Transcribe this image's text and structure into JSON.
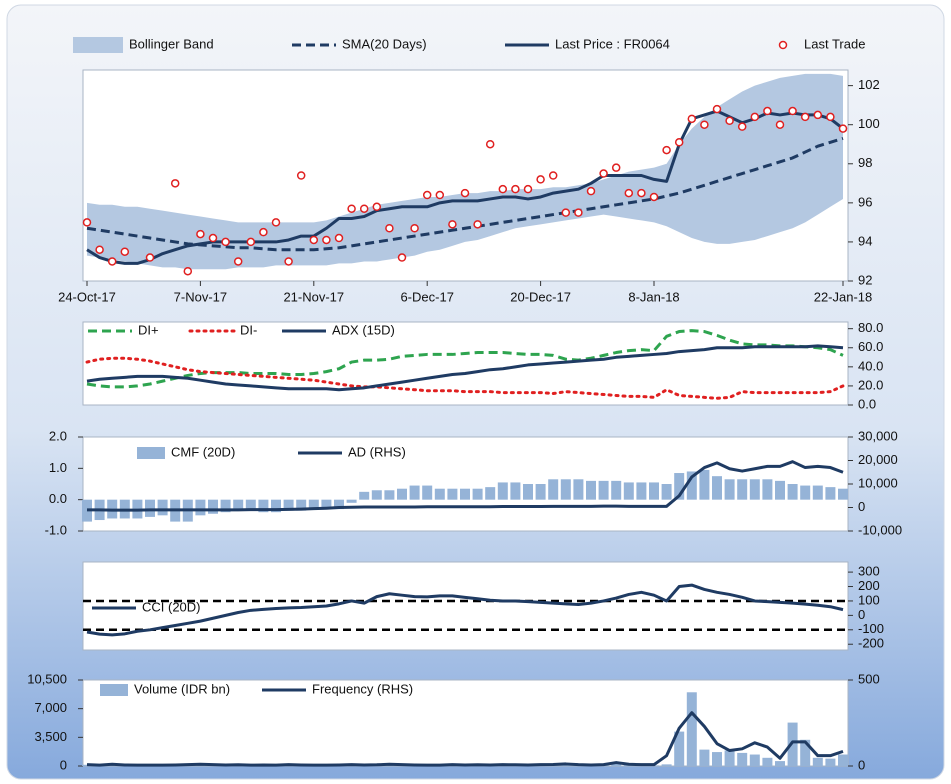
{
  "chart_data": [
    {
      "type": "combo",
      "y_side": "right",
      "categories": [
        "24-Oct-17",
        null,
        null,
        null,
        null,
        null,
        null,
        null,
        null,
        "7-Nov-17",
        null,
        null,
        null,
        null,
        null,
        null,
        null,
        null,
        "21-Nov-17",
        null,
        null,
        null,
        null,
        null,
        null,
        null,
        null,
        "6-Dec-17",
        null,
        null,
        null,
        null,
        null,
        null,
        null,
        null,
        "20-Dec-17",
        null,
        null,
        null,
        null,
        null,
        null,
        null,
        null,
        "8-Jan-18",
        null,
        null,
        null,
        null,
        null,
        null,
        null,
        null,
        null,
        null,
        null,
        null,
        null,
        null,
        "22-Jan-18"
      ],
      "ylim": [
        92,
        102.8
      ],
      "yticks": [
        92,
        94,
        96,
        98,
        100,
        102
      ],
      "series": [
        {
          "name": "Bollinger Band",
          "type": "band",
          "color": "#b4c8e1",
          "upper": [
            96.0,
            95.9,
            95.9,
            95.8,
            95.8,
            95.7,
            95.6,
            95.5,
            95.4,
            95.3,
            95.2,
            95.1,
            95.0,
            95.0,
            95.0,
            95.0,
            95.0,
            95.0,
            95.0,
            95.1,
            95.3,
            95.5,
            95.7,
            95.9,
            96.0,
            96.1,
            96.2,
            96.3,
            96.3,
            96.4,
            96.5,
            96.5,
            96.6,
            96.6,
            96.7,
            96.7,
            96.7,
            96.8,
            96.8,
            96.9,
            97.0,
            97.2,
            97.4,
            97.6,
            97.7,
            97.8,
            98.0,
            99.0,
            99.8,
            100.4,
            100.9,
            101.3,
            101.7,
            102.0,
            102.2,
            102.4,
            102.5,
            102.6,
            102.6,
            102.6,
            102.5
          ],
          "lower": [
            93.3,
            93.2,
            93.1,
            93.0,
            92.9,
            92.8,
            92.7,
            92.7,
            92.6,
            92.6,
            92.6,
            92.6,
            92.7,
            92.7,
            92.7,
            92.8,
            92.8,
            92.8,
            92.8,
            92.8,
            92.9,
            92.9,
            93.0,
            93.0,
            93.1,
            93.2,
            93.3,
            93.5,
            93.6,
            93.8,
            94.0,
            94.1,
            94.3,
            94.5,
            94.7,
            94.8,
            94.9,
            95.0,
            95.1,
            95.2,
            95.3,
            95.4,
            95.3,
            95.2,
            95.1,
            95.0,
            94.8,
            94.5,
            94.2,
            94.0,
            93.9,
            93.9,
            94.0,
            94.1,
            94.3,
            94.5,
            94.7,
            95.0,
            95.4,
            95.8,
            96.2
          ]
        },
        {
          "name": "SMA(20 Days)",
          "type": "line",
          "dash": "dashed",
          "color": "#1f3b63",
          "values": [
            94.7,
            94.6,
            94.5,
            94.4,
            94.3,
            94.2,
            94.1,
            94.0,
            93.9,
            93.85,
            93.8,
            93.75,
            93.7,
            93.7,
            93.65,
            93.6,
            93.6,
            93.6,
            93.6,
            93.65,
            93.7,
            93.8,
            93.9,
            94.0,
            94.1,
            94.2,
            94.3,
            94.4,
            94.5,
            94.6,
            94.7,
            94.8,
            94.9,
            95.0,
            95.1,
            95.2,
            95.3,
            95.4,
            95.5,
            95.6,
            95.7,
            95.8,
            95.9,
            96.0,
            96.1,
            96.2,
            96.35,
            96.5,
            96.7,
            96.9,
            97.1,
            97.3,
            97.5,
            97.7,
            97.9,
            98.1,
            98.3,
            98.6,
            98.9,
            99.1,
            99.3
          ]
        },
        {
          "name": "Last Price : FR0064",
          "type": "line",
          "color": "#1f3b63",
          "values": [
            93.6,
            93.2,
            93.0,
            92.9,
            92.9,
            93.1,
            93.4,
            93.6,
            93.8,
            93.9,
            94.0,
            94.0,
            94.0,
            94.0,
            94.0,
            94.0,
            94.1,
            94.3,
            94.3,
            94.7,
            95.2,
            95.2,
            95.3,
            95.6,
            95.7,
            95.8,
            95.8,
            95.8,
            96.0,
            96.1,
            96.1,
            96.1,
            96.2,
            96.3,
            96.3,
            96.2,
            96.3,
            96.5,
            96.6,
            96.7,
            97.0,
            97.4,
            97.4,
            97.4,
            97.4,
            97.2,
            97.1,
            99.0,
            100.3,
            100.5,
            100.7,
            100.4,
            100.1,
            100.3,
            100.6,
            100.5,
            100.6,
            100.5,
            100.5,
            100.3,
            99.8
          ]
        },
        {
          "name": "Last Trade",
          "type": "scatter",
          "color": "#e02020",
          "values": [
            95.0,
            93.6,
            93.0,
            93.5,
            null,
            93.2,
            null,
            97.0,
            92.5,
            94.4,
            94.2,
            94.0,
            93.0,
            94.0,
            94.5,
            95.0,
            93.0,
            97.4,
            94.1,
            94.1,
            94.2,
            95.7,
            95.7,
            95.8,
            94.7,
            93.2,
            94.7,
            96.4,
            96.4,
            94.9,
            96.5,
            94.9,
            99.0,
            96.7,
            96.7,
            96.7,
            97.2,
            97.4,
            95.5,
            95.5,
            96.6,
            97.5,
            97.8,
            96.5,
            96.5,
            96.3,
            98.7,
            99.1,
            100.3,
            100.0,
            100.8,
            100.2,
            99.9,
            100.4,
            100.7,
            100.0,
            100.7,
            100.4,
            100.5,
            100.4,
            99.8
          ]
        }
      ]
    },
    {
      "type": "combo",
      "y_side": "right",
      "ylim": [
        0,
        87
      ],
      "yticks": [
        {
          "value": 0,
          "label": "0.0"
        },
        {
          "value": 20,
          "label": "20.0"
        },
        {
          "value": 40,
          "label": "40.0"
        },
        {
          "value": 60,
          "label": "60.0"
        },
        {
          "value": 80,
          "label": "80.0"
        }
      ],
      "series": [
        {
          "name": "DI+",
          "type": "line",
          "dash": "dashed",
          "color": "#2ea44f",
          "values": [
            22,
            20,
            19,
            19,
            20,
            22,
            25,
            28,
            31,
            33,
            34,
            34,
            34,
            33,
            33,
            33,
            32,
            32,
            33,
            35,
            38,
            45,
            47,
            47,
            48,
            51,
            52,
            53,
            53,
            53,
            54,
            55,
            55,
            55,
            54,
            53,
            53,
            52,
            48,
            47,
            49,
            52,
            55,
            57,
            58,
            57,
            72,
            77,
            78,
            77,
            73,
            68,
            64,
            63,
            63,
            62,
            62,
            61,
            60,
            58,
            52
          ]
        },
        {
          "name": "DI-",
          "type": "line",
          "dash": "dotted",
          "color": "#e02020",
          "values": [
            45,
            48,
            49,
            49,
            48,
            46,
            43,
            40,
            37,
            35,
            34,
            33,
            32,
            31,
            30,
            29,
            28,
            27,
            26,
            24,
            22,
            20,
            19,
            19,
            18,
            17,
            16,
            15,
            15,
            15,
            14,
            14,
            14,
            13,
            13,
            13,
            13,
            12,
            14,
            13,
            12,
            11,
            10,
            9,
            9,
            8,
            16,
            10,
            9,
            8,
            7,
            8,
            14,
            13,
            13,
            13,
            13,
            13,
            13,
            14,
            20
          ]
        },
        {
          "name": "ADX (15D)",
          "type": "line",
          "color": "#1f3b63",
          "values": [
            25,
            27,
            28,
            29,
            30,
            30,
            30,
            29,
            28,
            26,
            24,
            22,
            21,
            20,
            19,
            18,
            17,
            17,
            17,
            17,
            16,
            17,
            18,
            20,
            22,
            24,
            26,
            28,
            30,
            32,
            33,
            35,
            37,
            38,
            40,
            42,
            43,
            44,
            45,
            46,
            47,
            48,
            50,
            51,
            52,
            53,
            54,
            56,
            57,
            58,
            60,
            60,
            60,
            61,
            61,
            61,
            61,
            61,
            62,
            61,
            60
          ]
        }
      ]
    },
    {
      "type": "combo",
      "y_side": "left",
      "ylim": [
        -1,
        2
      ],
      "yticks": [
        {
          "value": -1,
          "label": "-1.0"
        },
        {
          "value": 0,
          "label": "0.0"
        },
        {
          "value": 1,
          "label": "1.0"
        },
        {
          "value": 2,
          "label": "2.0"
        }
      ],
      "y2lim": [
        -10000,
        30000
      ],
      "y2ticks": [
        {
          "value": -10000,
          "label": "-10,000"
        },
        0,
        {
          "value": 10000,
          "label": "10,000"
        },
        {
          "value": 20000,
          "label": "20,000"
        },
        {
          "value": 30000,
          "label": "30,000"
        }
      ],
      "series": [
        {
          "name": "CMF (20D)",
          "type": "bar",
          "color": "#95b3d7",
          "values": [
            -0.7,
            -0.65,
            -0.6,
            -0.6,
            -0.6,
            -0.55,
            -0.5,
            -0.7,
            -0.7,
            -0.5,
            -0.45,
            -0.4,
            -0.35,
            -0.35,
            -0.4,
            -0.4,
            -0.35,
            -0.35,
            -0.3,
            -0.3,
            -0.3,
            -0.1,
            0.25,
            0.3,
            0.3,
            0.35,
            0.45,
            0.45,
            0.35,
            0.35,
            0.35,
            0.35,
            0.4,
            0.55,
            0.55,
            0.5,
            0.5,
            0.65,
            0.65,
            0.65,
            0.6,
            0.6,
            0.6,
            0.55,
            0.55,
            0.55,
            0.5,
            0.85,
            0.9,
            0.95,
            0.75,
            0.65,
            0.65,
            0.65,
            0.65,
            0.6,
            0.5,
            0.45,
            0.45,
            0.4,
            0.35
          ]
        },
        {
          "name": "AD (RHS)",
          "type": "line",
          "axis": "y2",
          "color": "#1f3b63",
          "values": [
            -1000,
            -1000,
            -1100,
            -1100,
            -1100,
            -1000,
            -1000,
            -1000,
            -1000,
            -1000,
            -1000,
            -1000,
            -1000,
            -900,
            -900,
            -900,
            -800,
            -700,
            -500,
            -300,
            0,
            100,
            200,
            200,
            200,
            200,
            200,
            300,
            300,
            300,
            300,
            300,
            300,
            400,
            400,
            400,
            400,
            500,
            500,
            500,
            500,
            600,
            600,
            500,
            500,
            500,
            500,
            5000,
            13000,
            17000,
            19000,
            16500,
            15500,
            16500,
            17500,
            17500,
            19500,
            17000,
            17500,
            17000,
            15000
          ]
        }
      ]
    },
    {
      "type": "combo",
      "y_side": "right",
      "ylim": [
        -240,
        370
      ],
      "yticks": [
        -200,
        -100,
        0,
        100,
        200,
        300
      ],
      "hlines": [
        100,
        -100
      ],
      "series": [
        {
          "name": "CCI (20D)",
          "type": "line",
          "color": "#1f3b63",
          "values": [
            -115,
            -130,
            -135,
            -128,
            -110,
            -100,
            -85,
            -70,
            -55,
            -40,
            -20,
            0,
            20,
            35,
            42,
            48,
            52,
            55,
            60,
            65,
            80,
            100,
            85,
            130,
            150,
            140,
            130,
            128,
            135,
            135,
            125,
            115,
            105,
            100,
            100,
            95,
            90,
            85,
            80,
            75,
            85,
            100,
            120,
            145,
            160,
            140,
            100,
            200,
            210,
            180,
            160,
            145,
            125,
            100,
            95,
            90,
            85,
            78,
            70,
            60,
            40
          ]
        }
      ]
    },
    {
      "type": "combo",
      "y_side": "left",
      "ylim": [
        0,
        10500
      ],
      "yticks": [
        0,
        {
          "value": 3500,
          "label": "3,500"
        },
        {
          "value": 7000,
          "label": "7,000"
        },
        {
          "value": 10500,
          "label": "10,500"
        }
      ],
      "y2lim": [
        0,
        500
      ],
      "y2ticks": [
        0,
        500
      ],
      "series": [
        {
          "name": "Volume (IDR bn)",
          "type": "bar",
          "color": "#95b3d7",
          "values": [
            150,
            100,
            200,
            100,
            80,
            60,
            100,
            120,
            150,
            200,
            150,
            100,
            120,
            80,
            100,
            90,
            150,
            120,
            100,
            80,
            100,
            150,
            100,
            120,
            180,
            150,
            120,
            100,
            80,
            150,
            100,
            120,
            100,
            150,
            130,
            100,
            120,
            140,
            200,
            150,
            100,
            120,
            250,
            150,
            100,
            80,
            200,
            4200,
            9000,
            2000,
            1700,
            1900,
            1600,
            1400,
            1000,
            600,
            5300,
            3200,
            1000,
            900,
            1400
          ]
        },
        {
          "name": "Frequency (RHS)",
          "type": "line",
          "axis": "y2",
          "color": "#1f3b63",
          "values": [
            8,
            5,
            10,
            6,
            5,
            5,
            5,
            6,
            8,
            10,
            8,
            6,
            7,
            5,
            6,
            5,
            8,
            6,
            5,
            5,
            6,
            8,
            6,
            7,
            10,
            8,
            6,
            5,
            5,
            8,
            6,
            7,
            6,
            8,
            7,
            6,
            8,
            9,
            12,
            8,
            6,
            8,
            20,
            10,
            8,
            8,
            60,
            220,
            310,
            230,
            130,
            90,
            100,
            135,
            110,
            45,
            140,
            140,
            60,
            60,
            85
          ]
        }
      ]
    }
  ]
}
